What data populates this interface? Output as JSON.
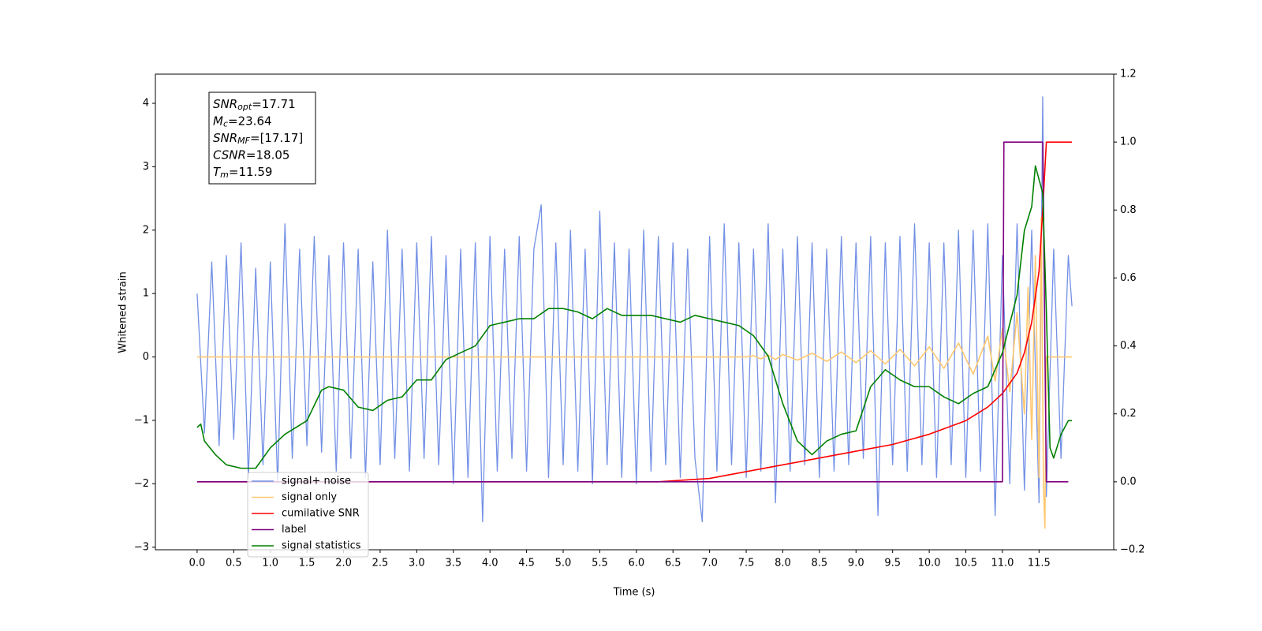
{
  "chart_data": {
    "type": "line",
    "xlabel": "Time (s)",
    "ylabel": "Whitened strain",
    "xlim": [
      -0.57,
      12.52
    ],
    "ylim": [
      -3.04,
      4.46
    ],
    "y2lim": [
      -0.2,
      1.2
    ],
    "xticks": [
      {
        "value": 0,
        "label": "0.0"
      },
      0.5,
      {
        "value": 1,
        "label": "1.0"
      },
      1.5,
      {
        "value": 2,
        "label": "2.0"
      },
      2.5,
      {
        "value": 3,
        "label": "3.0"
      },
      3.5,
      {
        "value": 4,
        "label": "4.0"
      },
      4.5,
      {
        "value": 5,
        "label": "5.0"
      },
      5.5,
      {
        "value": 6,
        "label": "6.0"
      },
      6.5,
      {
        "value": 7,
        "label": "7.0"
      },
      7.5,
      {
        "value": 8,
        "label": "8.0"
      },
      8.5,
      {
        "value": 9,
        "label": "9.0"
      },
      9.5,
      {
        "value": 10,
        "label": "10.0"
      },
      10.5,
      {
        "value": 11,
        "label": "11.0"
      },
      11.5
    ],
    "yticks": [
      {
        "value": -3,
        "label": "−3"
      },
      {
        "value": -2,
        "label": "−2"
      },
      {
        "value": -1,
        "label": "−1"
      },
      0,
      1,
      2,
      3,
      4
    ],
    "y2ticks": [
      {
        "value": -0.2,
        "label": "−0.2"
      },
      {
        "value": 0,
        "label": "0.0"
      },
      0.2,
      0.4,
      0.6,
      0.8,
      {
        "value": 1,
        "label": "1.0"
      },
      1.2
    ],
    "legend": "lower left",
    "annotations": [
      {
        "symbol": "SNR",
        "subscript": "opt",
        "text": "=17.71"
      },
      {
        "symbol": "M",
        "subscript": "c",
        "text": "=23.64"
      },
      {
        "symbol": "SNR",
        "subscript": "MF",
        "text": "=[17.17]"
      },
      {
        "symbol": "CSNR",
        "text": "=18.05"
      },
      {
        "symbol": "T",
        "subscript": "m",
        "text": "=11.59"
      }
    ],
    "series": [
      {
        "name": "signal+ noise",
        "color": "#7390e6",
        "x": [
          0,
          0.1,
          0.2,
          0.3,
          0.4,
          0.5,
          0.6,
          0.7,
          0.8,
          0.9,
          1,
          1.1,
          1.2,
          1.3,
          1.4,
          1.5,
          1.6,
          1.7,
          1.8,
          1.9,
          2,
          2.1,
          2.2,
          2.3,
          2.4,
          2.5,
          2.6,
          2.7,
          2.8,
          2.9,
          3,
          3.1,
          3.2,
          3.3,
          3.4,
          3.5,
          3.6,
          3.7,
          3.8,
          3.9,
          4,
          4.1,
          4.2,
          4.3,
          4.4,
          4.5,
          4.6,
          4.7,
          4.8,
          4.9,
          5,
          5.1,
          5.2,
          5.3,
          5.4,
          5.5,
          5.6,
          5.7,
          5.8,
          5.9,
          6,
          6.1,
          6.2,
          6.3,
          6.4,
          6.5,
          6.6,
          6.7,
          6.8,
          6.9,
          7,
          7.1,
          7.2,
          7.3,
          7.4,
          7.5,
          7.6,
          7.7,
          7.8,
          7.9,
          8,
          8.1,
          8.2,
          8.3,
          8.4,
          8.5,
          8.6,
          8.7,
          8.8,
          8.9,
          9,
          9.1,
          9.2,
          9.3,
          9.4,
          9.5,
          9.6,
          9.7,
          9.8,
          9.9,
          10,
          10.1,
          10.2,
          10.3,
          10.4,
          10.5,
          10.6,
          10.7,
          10.8,
          10.9,
          11,
          11.1,
          11.2,
          11.3,
          11.4,
          11.5,
          11.55,
          11.6,
          11.7,
          11.8,
          11.9,
          11.95
        ],
        "values": [
          1,
          -1.2,
          1.5,
          -1.4,
          1.6,
          -1.3,
          1.8,
          -1.9,
          1.4,
          -1.7,
          1.5,
          -2,
          2.1,
          -1.6,
          1.7,
          -1.4,
          1.9,
          -1.5,
          1.6,
          -1.8,
          1.8,
          -1.6,
          1.7,
          -1.9,
          1.5,
          -1.7,
          2,
          -1.6,
          1.7,
          -1.8,
          1.8,
          -1.6,
          1.9,
          -1.7,
          1.6,
          -2,
          1.7,
          -1.9,
          1.8,
          -2.6,
          1.9,
          -1.8,
          1.7,
          -1.6,
          1.9,
          -1.8,
          1.7,
          2.4,
          -1.9,
          1.8,
          -1.7,
          2,
          -1.8,
          1.7,
          -2,
          2.3,
          -1.7,
          1.8,
          -1.9,
          1.7,
          -2,
          2,
          -1.8,
          1.9,
          -1.7,
          1.8,
          -1.9,
          1.7,
          -1.6,
          -2.6,
          1.9,
          -1.8,
          2.1,
          -1.7,
          1.8,
          -1.9,
          1.7,
          -1.8,
          2.1,
          -2.3,
          1.7,
          -1.8,
          1.9,
          -1.7,
          1.8,
          -1.9,
          1.7,
          -1.8,
          1.9,
          -1.7,
          1.8,
          -1.6,
          1.9,
          -2.5,
          1.8,
          -1.7,
          1.9,
          -1.8,
          2.1,
          -1.7,
          1.8,
          -1.9,
          1.8,
          -1.7,
          2,
          -1.9,
          2,
          -1.8,
          2.1,
          -2.5,
          1.6,
          -2,
          2.1,
          -2.1,
          2,
          -2.3,
          4.1,
          -2.2,
          1.7,
          -1.6,
          1.6,
          0.8
        ]
      },
      {
        "name": "signal only",
        "color": "#ffc870",
        "x": [
          0,
          7.5,
          7.6,
          7.7,
          7.8,
          7.9,
          8,
          8.2,
          8.4,
          8.6,
          8.8,
          9,
          9.2,
          9.4,
          9.6,
          9.8,
          10,
          10.2,
          10.4,
          10.6,
          10.8,
          10.9,
          11,
          11.1,
          11.2,
          11.3,
          11.35,
          11.4,
          11.45,
          11.5,
          11.53,
          11.56,
          11.58,
          11.6,
          11.95
        ],
        "values": [
          0,
          0,
          0.02,
          -0.03,
          0.03,
          -0.04,
          0.04,
          -0.05,
          0.06,
          -0.07,
          0.08,
          -0.09,
          0.1,
          -0.11,
          0.12,
          -0.14,
          0.16,
          -0.18,
          0.22,
          -0.27,
          0.33,
          -0.38,
          0.45,
          -0.55,
          0.7,
          -0.9,
          1.1,
          -1.3,
          1.6,
          -1.9,
          2.2,
          -2,
          -2.7,
          0,
          0
        ]
      },
      {
        "name": "cumilative SNR",
        "color": "#ff0000",
        "axis": "y2",
        "x": [
          0,
          6.3,
          7,
          7.5,
          8,
          8.5,
          9,
          9.5,
          10,
          10.5,
          10.8,
          11,
          11.2,
          11.3,
          11.4,
          11.5,
          11.55,
          11.6,
          11.95
        ],
        "values": [
          0,
          0,
          0.01,
          0.03,
          0.05,
          0.07,
          0.09,
          0.11,
          0.14,
          0.18,
          0.22,
          0.26,
          0.32,
          0.38,
          0.47,
          0.62,
          0.8,
          1,
          1
        ]
      },
      {
        "name": "label",
        "color": "#800080",
        "axis": "y2",
        "x": [
          0,
          11,
          11.02,
          11.55,
          11.6,
          11.9
        ],
        "values": [
          0,
          0,
          1,
          1,
          0,
          0
        ]
      },
      {
        "name": "signal statistics",
        "color": "#008000",
        "axis": "y2",
        "x": [
          0,
          0.05,
          0.1,
          0.25,
          0.4,
          0.6,
          0.8,
          1,
          1.2,
          1.5,
          1.7,
          1.8,
          2,
          2.2,
          2.4,
          2.6,
          2.8,
          3,
          3.2,
          3.4,
          3.6,
          3.8,
          4,
          4.2,
          4.4,
          4.6,
          4.8,
          5,
          5.2,
          5.4,
          5.6,
          5.8,
          6,
          6.2,
          6.4,
          6.6,
          6.8,
          7,
          7.2,
          7.4,
          7.6,
          7.8,
          8,
          8.2,
          8.4,
          8.6,
          8.8,
          9,
          9.2,
          9.4,
          9.6,
          9.8,
          10,
          10.2,
          10.4,
          10.6,
          10.8,
          11,
          11.2,
          11.3,
          11.4,
          11.45,
          11.55,
          11.6,
          11.65,
          11.7,
          11.8,
          11.9,
          11.95
        ],
        "values": [
          0.16,
          0.17,
          0.12,
          0.08,
          0.05,
          0.04,
          0.04,
          0.1,
          0.14,
          0.18,
          0.27,
          0.28,
          0.27,
          0.22,
          0.21,
          0.24,
          0.25,
          0.3,
          0.3,
          0.36,
          0.38,
          0.4,
          0.46,
          0.47,
          0.48,
          0.48,
          0.51,
          0.51,
          0.5,
          0.48,
          0.51,
          0.49,
          0.49,
          0.49,
          0.48,
          0.47,
          0.49,
          0.48,
          0.47,
          0.46,
          0.43,
          0.37,
          0.23,
          0.12,
          0.08,
          0.12,
          0.14,
          0.15,
          0.28,
          0.33,
          0.3,
          0.28,
          0.28,
          0.25,
          0.23,
          0.26,
          0.28,
          0.38,
          0.55,
          0.74,
          0.81,
          0.93,
          0.85,
          0.5,
          0.1,
          0.07,
          0.14,
          0.18,
          0.18
        ]
      }
    ]
  }
}
